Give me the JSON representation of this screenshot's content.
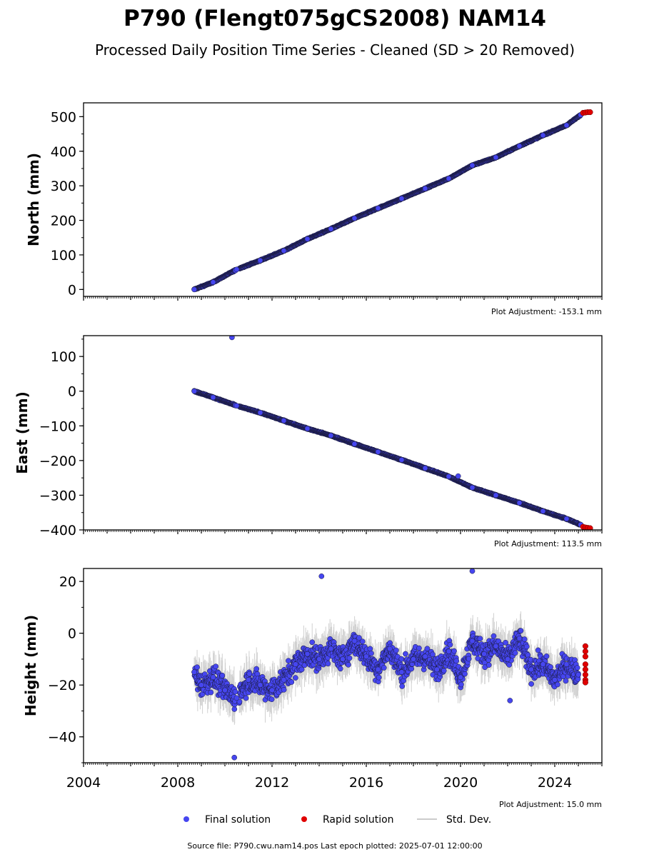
{
  "title": "P790 (Flengt075gCS2008) NAM14",
  "subtitle": "Processed Daily Position Time Series - Cleaned (SD > 20 Removed)",
  "legend": {
    "final": "Final solution",
    "rapid": "Rapid solution",
    "std": "Std. Dev."
  },
  "source_text": "Source file: P790.cwu.nam14.pos  Last epoch plotted: 2025-07-01 12:00:00",
  "colors": {
    "final": "#4646f0",
    "final_edge": "#1a1a3a",
    "rapid": "#e00000",
    "std": "#999999"
  },
  "chart_data": [
    {
      "type": "scatter",
      "panel": "north",
      "ylabel": "North (mm)",
      "adjustment": "Plot Adjustment: -153.1 mm",
      "xlim": [
        2004,
        2026
      ],
      "ylim": [
        -20,
        540
      ],
      "yticks": [
        0,
        100,
        200,
        300,
        400,
        500
      ],
      "ytick_labels": [
        "0",
        "100",
        "200",
        "300",
        "400",
        "500"
      ],
      "series": [
        {
          "name": "Final solution",
          "x": [
            2008.7,
            2009.5,
            2010.5,
            2011.5,
            2012.5,
            2013.5,
            2014.5,
            2015.5,
            2016.5,
            2017.5,
            2018.5,
            2019.5,
            2020.5,
            2021.5,
            2022.5,
            2023.5,
            2024.5,
            2025.1
          ],
          "y": [
            0,
            21,
            58,
            84,
            112,
            146,
            175,
            206,
            235,
            263,
            292,
            321,
            359,
            382,
            415,
            446,
            475,
            505
          ]
        },
        {
          "name": "Rapid solution",
          "x": [
            2025.2,
            2025.3,
            2025.4,
            2025.5
          ],
          "y": [
            511,
            512,
            513,
            513
          ]
        }
      ]
    },
    {
      "type": "scatter",
      "panel": "east",
      "ylabel": "East (mm)",
      "adjustment": "Plot Adjustment: 113.5 mm",
      "xlim": [
        2004,
        2026
      ],
      "ylim": [
        -400,
        160
      ],
      "yticks": [
        -400,
        -300,
        -200,
        -100,
        0,
        100
      ],
      "ytick_labels": [
        "−400",
        "−300",
        "−200",
        "−100",
        "0",
        "100"
      ],
      "series": [
        {
          "name": "Final solution",
          "x": [
            2008.7,
            2009.5,
            2010.5,
            2011.5,
            2012.5,
            2013.5,
            2014.5,
            2015.5,
            2016.5,
            2017.5,
            2018.5,
            2019.5,
            2020.5,
            2021.5,
            2022.5,
            2023.5,
            2024.5,
            2025.1
          ],
          "y": [
            0,
            -18,
            -42,
            -62,
            -85,
            -108,
            -128,
            -152,
            -175,
            -198,
            -222,
            -246,
            -278,
            -300,
            -322,
            -346,
            -368,
            -385
          ]
        },
        {
          "name": "Rapid solution",
          "x": [
            2025.2,
            2025.3,
            2025.4,
            2025.5
          ],
          "y": [
            -391,
            -393,
            -394,
            -395
          ]
        }
      ],
      "outliers": [
        {
          "x": 2010.3,
          "y": 155
        },
        {
          "x": 2019.9,
          "y": -245
        }
      ]
    },
    {
      "type": "scatter",
      "panel": "height",
      "ylabel": "Height (mm)",
      "adjustment": "Plot Adjustment: 15.0 mm",
      "xlim": [
        2004,
        2026
      ],
      "ylim": [
        -50,
        25
      ],
      "yticks": [
        -40,
        -20,
        0,
        20
      ],
      "ytick_labels": [
        "−40",
        "−20",
        "0",
        "20"
      ],
      "xticks": [
        2004,
        2008,
        2012,
        2016,
        2020,
        2024
      ],
      "xtick_labels": [
        "2004",
        "2008",
        "2012",
        "2016",
        "2020",
        "2024"
      ],
      "series": [
        {
          "name": "Final solution",
          "x": [
            2008.7,
            2009.0,
            2009.5,
            2010.0,
            2010.5,
            2011.0,
            2011.5,
            2012.0,
            2012.5,
            2013.0,
            2013.5,
            2014.0,
            2014.5,
            2015.0,
            2015.5,
            2016.0,
            2016.5,
            2017.0,
            2017.5,
            2018.0,
            2018.5,
            2019.0,
            2019.5,
            2020.0,
            2020.5,
            2021.0,
            2021.5,
            2022.0,
            2022.5,
            2023.0,
            2023.5,
            2024.0,
            2024.5,
            2025.0
          ],
          "y": [
            -15,
            -20,
            -17,
            -22,
            -25,
            -18,
            -20,
            -22,
            -18,
            -12,
            -8,
            -10,
            -6,
            -10,
            -3,
            -9,
            -14,
            -6,
            -15,
            -10,
            -9,
            -14,
            -7,
            -17,
            -3,
            -8,
            -5,
            -10,
            -2,
            -14,
            -12,
            -18,
            -12,
            -16
          ]
        },
        {
          "name": "Rapid solution",
          "x": [
            2025.3,
            2025.3,
            2025.3,
            2025.3,
            2025.3,
            2025.3,
            2025.3,
            2025.3
          ],
          "y": [
            -5,
            -7,
            -9,
            -12,
            -14,
            -16,
            -18,
            -19
          ]
        }
      ],
      "outliers": [
        {
          "x": 2014.1,
          "y": 22
        },
        {
          "x": 2020.5,
          "y": 24
        },
        {
          "x": 2010.4,
          "y": -48
        },
        {
          "x": 2022.1,
          "y": -26
        }
      ]
    }
  ]
}
